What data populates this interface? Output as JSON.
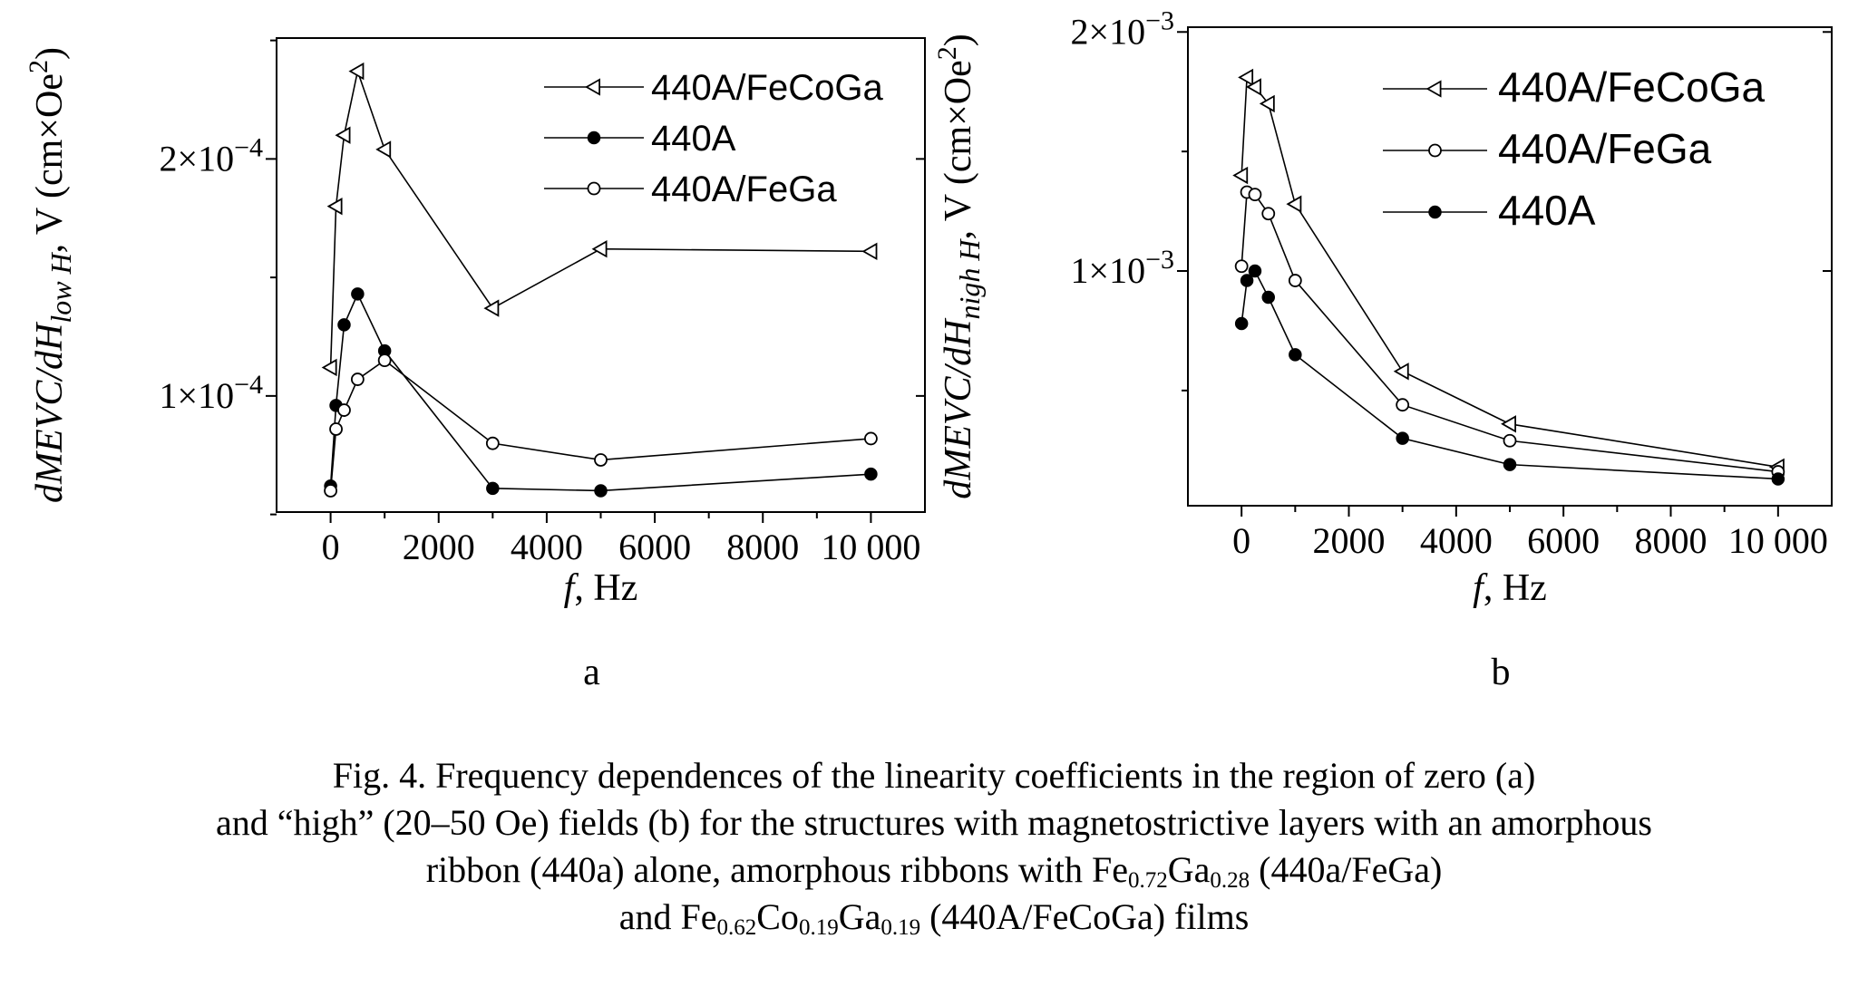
{
  "chart_data": [
    {
      "type": "line",
      "panel_label": "a",
      "xlabel": "f, Hz",
      "ylabel_parts": {
        "main": "dMEVC/dH",
        "sub": "low H",
        "units": ", V (cm×Oe",
        "sup": "2",
        "close": ")"
      },
      "xlim": [
        -1000,
        11000
      ],
      "ylim": [
        5.1e-05,
        0.000251
      ],
      "x_ticks": [
        0,
        2000,
        4000,
        6000,
        8000,
        10000
      ],
      "x_tick_labels": [
        "0",
        "2000",
        "4000",
        "6000",
        "8000",
        "10 000"
      ],
      "y_major_ticks": [
        0.0001,
        0.0002
      ],
      "y_minor_ticks": [
        5e-05,
        0.00015,
        0.00025
      ],
      "y_tick_labels": [
        {
          "mant": "1×10",
          "exp": "−4"
        },
        {
          "mant": "2×10",
          "exp": "−4"
        }
      ],
      "legend_position": "top-right",
      "series": [
        {
          "name": "440A/FeCoGa",
          "marker": "triangle-left-open",
          "x": [
            0,
            100,
            250,
            500,
            1000,
            3000,
            5000,
            10000
          ],
          "y": [
            0.000112,
            0.00018,
            0.00021,
            0.000237,
            0.000204,
            0.000137,
            0.000162,
            0.000161
          ]
        },
        {
          "name": "440A",
          "marker": "circle-filled",
          "x": [
            0,
            100,
            250,
            500,
            1000,
            3000,
            5000,
            10000
          ],
          "y": [
            6.2e-05,
            9.6e-05,
            0.00013,
            0.000143,
            0.000119,
            6.1e-05,
            6e-05,
            6.7e-05
          ]
        },
        {
          "name": "440A/FeGa",
          "marker": "circle-open",
          "x": [
            0,
            100,
            250,
            500,
            1000,
            3000,
            5000,
            10000
          ],
          "y": [
            6e-05,
            8.6e-05,
            9.4e-05,
            0.000107,
            0.000115,
            8e-05,
            7.3e-05,
            8.2e-05
          ]
        }
      ],
      "legend_order": [
        "440A/FeCoGa",
        "440A",
        "440A/FeGa"
      ]
    },
    {
      "type": "line",
      "panel_label": "b",
      "xlabel": "f, Hz",
      "ylabel_parts": {
        "main": "dMEVC/dH",
        "sub": "nigh H",
        "units": ", V (cm×Oe",
        "sup": "2",
        "close": ")"
      },
      "xlim": [
        -1000,
        11000
      ],
      "ylim": [
        1.8e-05,
        0.00202
      ],
      "x_ticks": [
        0,
        2000,
        4000,
        6000,
        8000,
        10000
      ],
      "x_tick_labels": [
        "0",
        "2000",
        "4000",
        "6000",
        "8000",
        "10 000"
      ],
      "y_major_ticks": [
        0.001,
        0.002
      ],
      "y_minor_ticks": [
        0.0005,
        0.0015
      ],
      "y_tick_labels": [
        {
          "mant": "1×10",
          "exp": "−3"
        },
        {
          "mant": "2×10",
          "exp": "−3"
        }
      ],
      "legend_position": "top-right",
      "series": [
        {
          "name": "440A/FeCoGa",
          "marker": "triangle-left-open",
          "x": [
            0,
            100,
            250,
            500,
            1000,
            3000,
            5000,
            10000
          ],
          "y": [
            0.0014,
            0.00181,
            0.00177,
            0.0017,
            0.00128,
            0.00058,
            0.00036,
            0.00018
          ]
        },
        {
          "name": "440A/FeGa",
          "marker": "circle-open",
          "x": [
            0,
            100,
            250,
            500,
            1000,
            3000,
            5000,
            10000
          ],
          "y": [
            0.00102,
            0.00133,
            0.00132,
            0.00124,
            0.00096,
            0.00044,
            0.00029,
            0.00016
          ]
        },
        {
          "name": "440A",
          "marker": "circle-filled",
          "x": [
            0,
            100,
            250,
            500,
            1000,
            3000,
            5000,
            10000
          ],
          "y": [
            0.00078,
            0.00096,
            0.001,
            0.00089,
            0.00065,
            0.0003,
            0.00019,
            0.00013
          ]
        }
      ],
      "legend_order": [
        "440A/FeCoGa",
        "440A/FeGa",
        "440A"
      ]
    }
  ],
  "caption": {
    "line1": "Fig. 4. Frequency dependences of the linearity coefficients in the region of zero (a)",
    "line2": "and “high” (20–50 Oe) fields (b) for the structures with magnetostrictive layers with an amorphous",
    "line3_a": "ribbon (440a) alone, amorphous ribbons with Fe",
    "line3_sub1": "0.72",
    "line3_b": "Ga",
    "line3_sub2": "0.28",
    "line3_c": " (440a/FeGa)",
    "line4_a": "and Fe",
    "line4_sub1": "0.62",
    "line4_b": "Co",
    "line4_sub2": "0.19",
    "line4_c": "Ga",
    "line4_sub3": "0.19",
    "line4_d": " (440A/FeCoGa) films"
  }
}
